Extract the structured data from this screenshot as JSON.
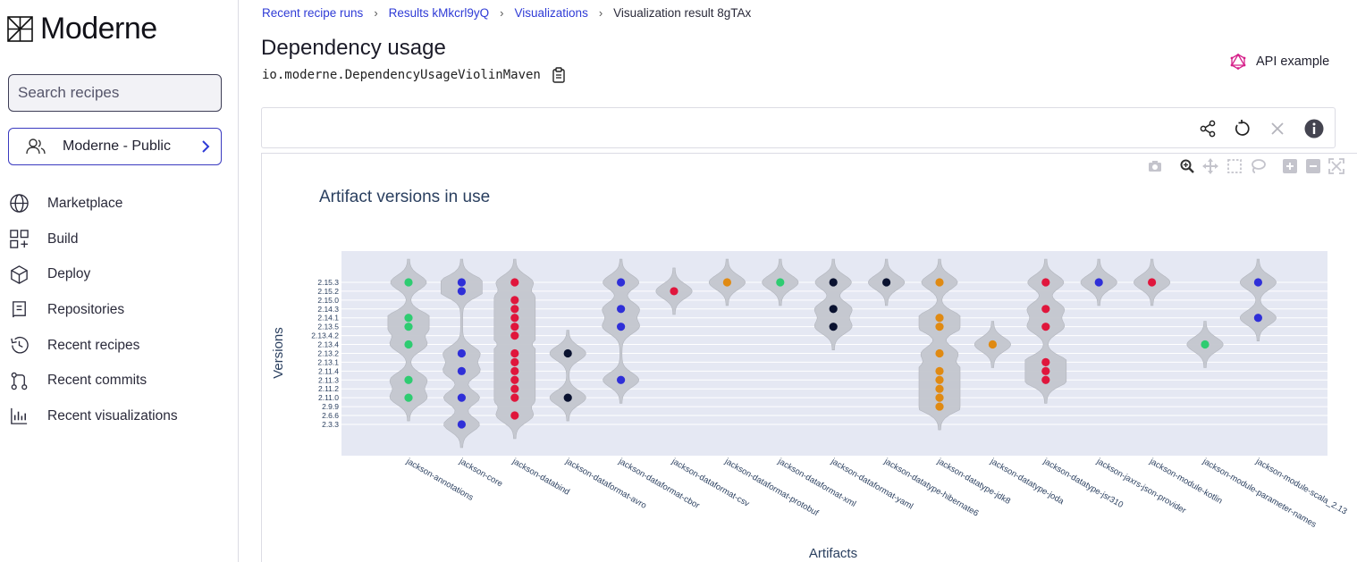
{
  "sidebar": {
    "logo_text": "Moderne",
    "search_placeholder": "Search recipes",
    "org_label": "Moderne - Public",
    "items": [
      {
        "label": "Marketplace",
        "icon": "globe-icon"
      },
      {
        "label": "Build",
        "icon": "build-icon"
      },
      {
        "label": "Deploy",
        "icon": "deploy-icon"
      },
      {
        "label": "Repositories",
        "icon": "repositories-icon"
      },
      {
        "label": "Recent recipes",
        "icon": "history-icon"
      },
      {
        "label": "Recent commits",
        "icon": "commit-icon"
      },
      {
        "label": "Recent visualizations",
        "icon": "chart-icon"
      }
    ]
  },
  "breadcrumb": {
    "items": [
      "Recent recipe runs",
      "Results kMkcrl9yQ",
      "Visualizations"
    ],
    "current": "Visualization result 8gTAx"
  },
  "header": {
    "title": "Dependency usage",
    "recipe_id": "io.moderne.DependencyUsageViolinMaven",
    "api_example": "API example"
  },
  "toolbar": {
    "icons": [
      "share-icon",
      "reset-icon",
      "close-icon",
      "info-icon"
    ]
  },
  "colors": {
    "accent": "#2f3bd6",
    "green": "#2ecc71",
    "blue": "#2f2fd8",
    "red": "#e0163c",
    "orange": "#e08a12",
    "black": "#0a1230",
    "violin": "#c3c6ce",
    "plot_bg": "#e5e8f3"
  },
  "chart_data": {
    "type": "scatter",
    "title": "Artifact versions in use",
    "xlabel": "Artifacts",
    "ylabel": "Versions",
    "grid": true,
    "legend": "none",
    "y_categories": [
      "2.3.3",
      "2.6.6",
      "2.9.9",
      "2.11.0",
      "2.11.2",
      "2.11.3",
      "2.11.4",
      "2.13.1",
      "2.13.2",
      "2.13.4",
      "2.13.4.2",
      "2.13.5",
      "2.14.1",
      "2.14.3",
      "2.15.0",
      "2.15.2",
      "2.15.3"
    ],
    "series": [
      {
        "name": "jackson-annotations",
        "color": "green",
        "points": [
          "2.15.3",
          "2.14.1",
          "2.13.5",
          "2.13.4",
          "2.11.3",
          "2.11.0"
        ]
      },
      {
        "name": "jackson-core",
        "color": "blue",
        "points": [
          "2.15.3",
          "2.15.2",
          "2.13.2",
          "2.11.4",
          "2.11.0",
          "2.3.3"
        ]
      },
      {
        "name": "jackson-databind",
        "color": "red",
        "points": [
          "2.15.3",
          "2.15.0",
          "2.14.3",
          "2.14.1",
          "2.13.5",
          "2.13.4.2",
          "2.13.2",
          "2.13.1",
          "2.11.4",
          "2.11.3",
          "2.11.2",
          "2.11.0",
          "2.6.6"
        ]
      },
      {
        "name": "jackson-dataformat-avro",
        "color": "black",
        "points": [
          "2.13.2",
          "2.11.0"
        ]
      },
      {
        "name": "jackson-dataformat-cbor",
        "color": "blue",
        "points": [
          "2.15.3",
          "2.14.3",
          "2.13.5",
          "2.11.3"
        ]
      },
      {
        "name": "jackson-dataformat-csv",
        "color": "red",
        "points": [
          "2.15.2"
        ]
      },
      {
        "name": "jackson-dataformat-protobuf",
        "color": "orange",
        "points": [
          "2.15.3"
        ]
      },
      {
        "name": "jackson-dataformat-xml",
        "color": "green",
        "points": [
          "2.15.3"
        ]
      },
      {
        "name": "jackson-dataformat-yaml",
        "color": "black",
        "points": [
          "2.15.3",
          "2.14.3",
          "2.13.5"
        ]
      },
      {
        "name": "jackson-datatype-hibernate6",
        "color": "black",
        "points": [
          "2.15.3"
        ]
      },
      {
        "name": "jackson-datatype-jdk8",
        "color": "orange",
        "points": [
          "2.15.3",
          "2.14.1",
          "2.13.5",
          "2.13.2",
          "2.11.4",
          "2.11.3",
          "2.11.2",
          "2.11.0",
          "2.9.9"
        ]
      },
      {
        "name": "jackson-datatype-joda",
        "color": "orange",
        "points": [
          "2.13.4"
        ]
      },
      {
        "name": "jackson-datatype-jsr310",
        "color": "red",
        "points": [
          "2.15.3",
          "2.14.3",
          "2.13.5",
          "2.13.1",
          "2.11.4",
          "2.11.3"
        ]
      },
      {
        "name": "jackson-jaxrs-json-provider",
        "color": "blue",
        "points": [
          "2.15.3"
        ]
      },
      {
        "name": "jackson-module-kotlin",
        "color": "red",
        "points": [
          "2.15.3"
        ]
      },
      {
        "name": "jackson-module-parameter-names",
        "color": "green",
        "points": [
          "2.13.4"
        ]
      },
      {
        "name": "jackson-module-scala_2.13",
        "color": "blue",
        "points": [
          "2.15.3",
          "2.14.1"
        ]
      }
    ]
  }
}
